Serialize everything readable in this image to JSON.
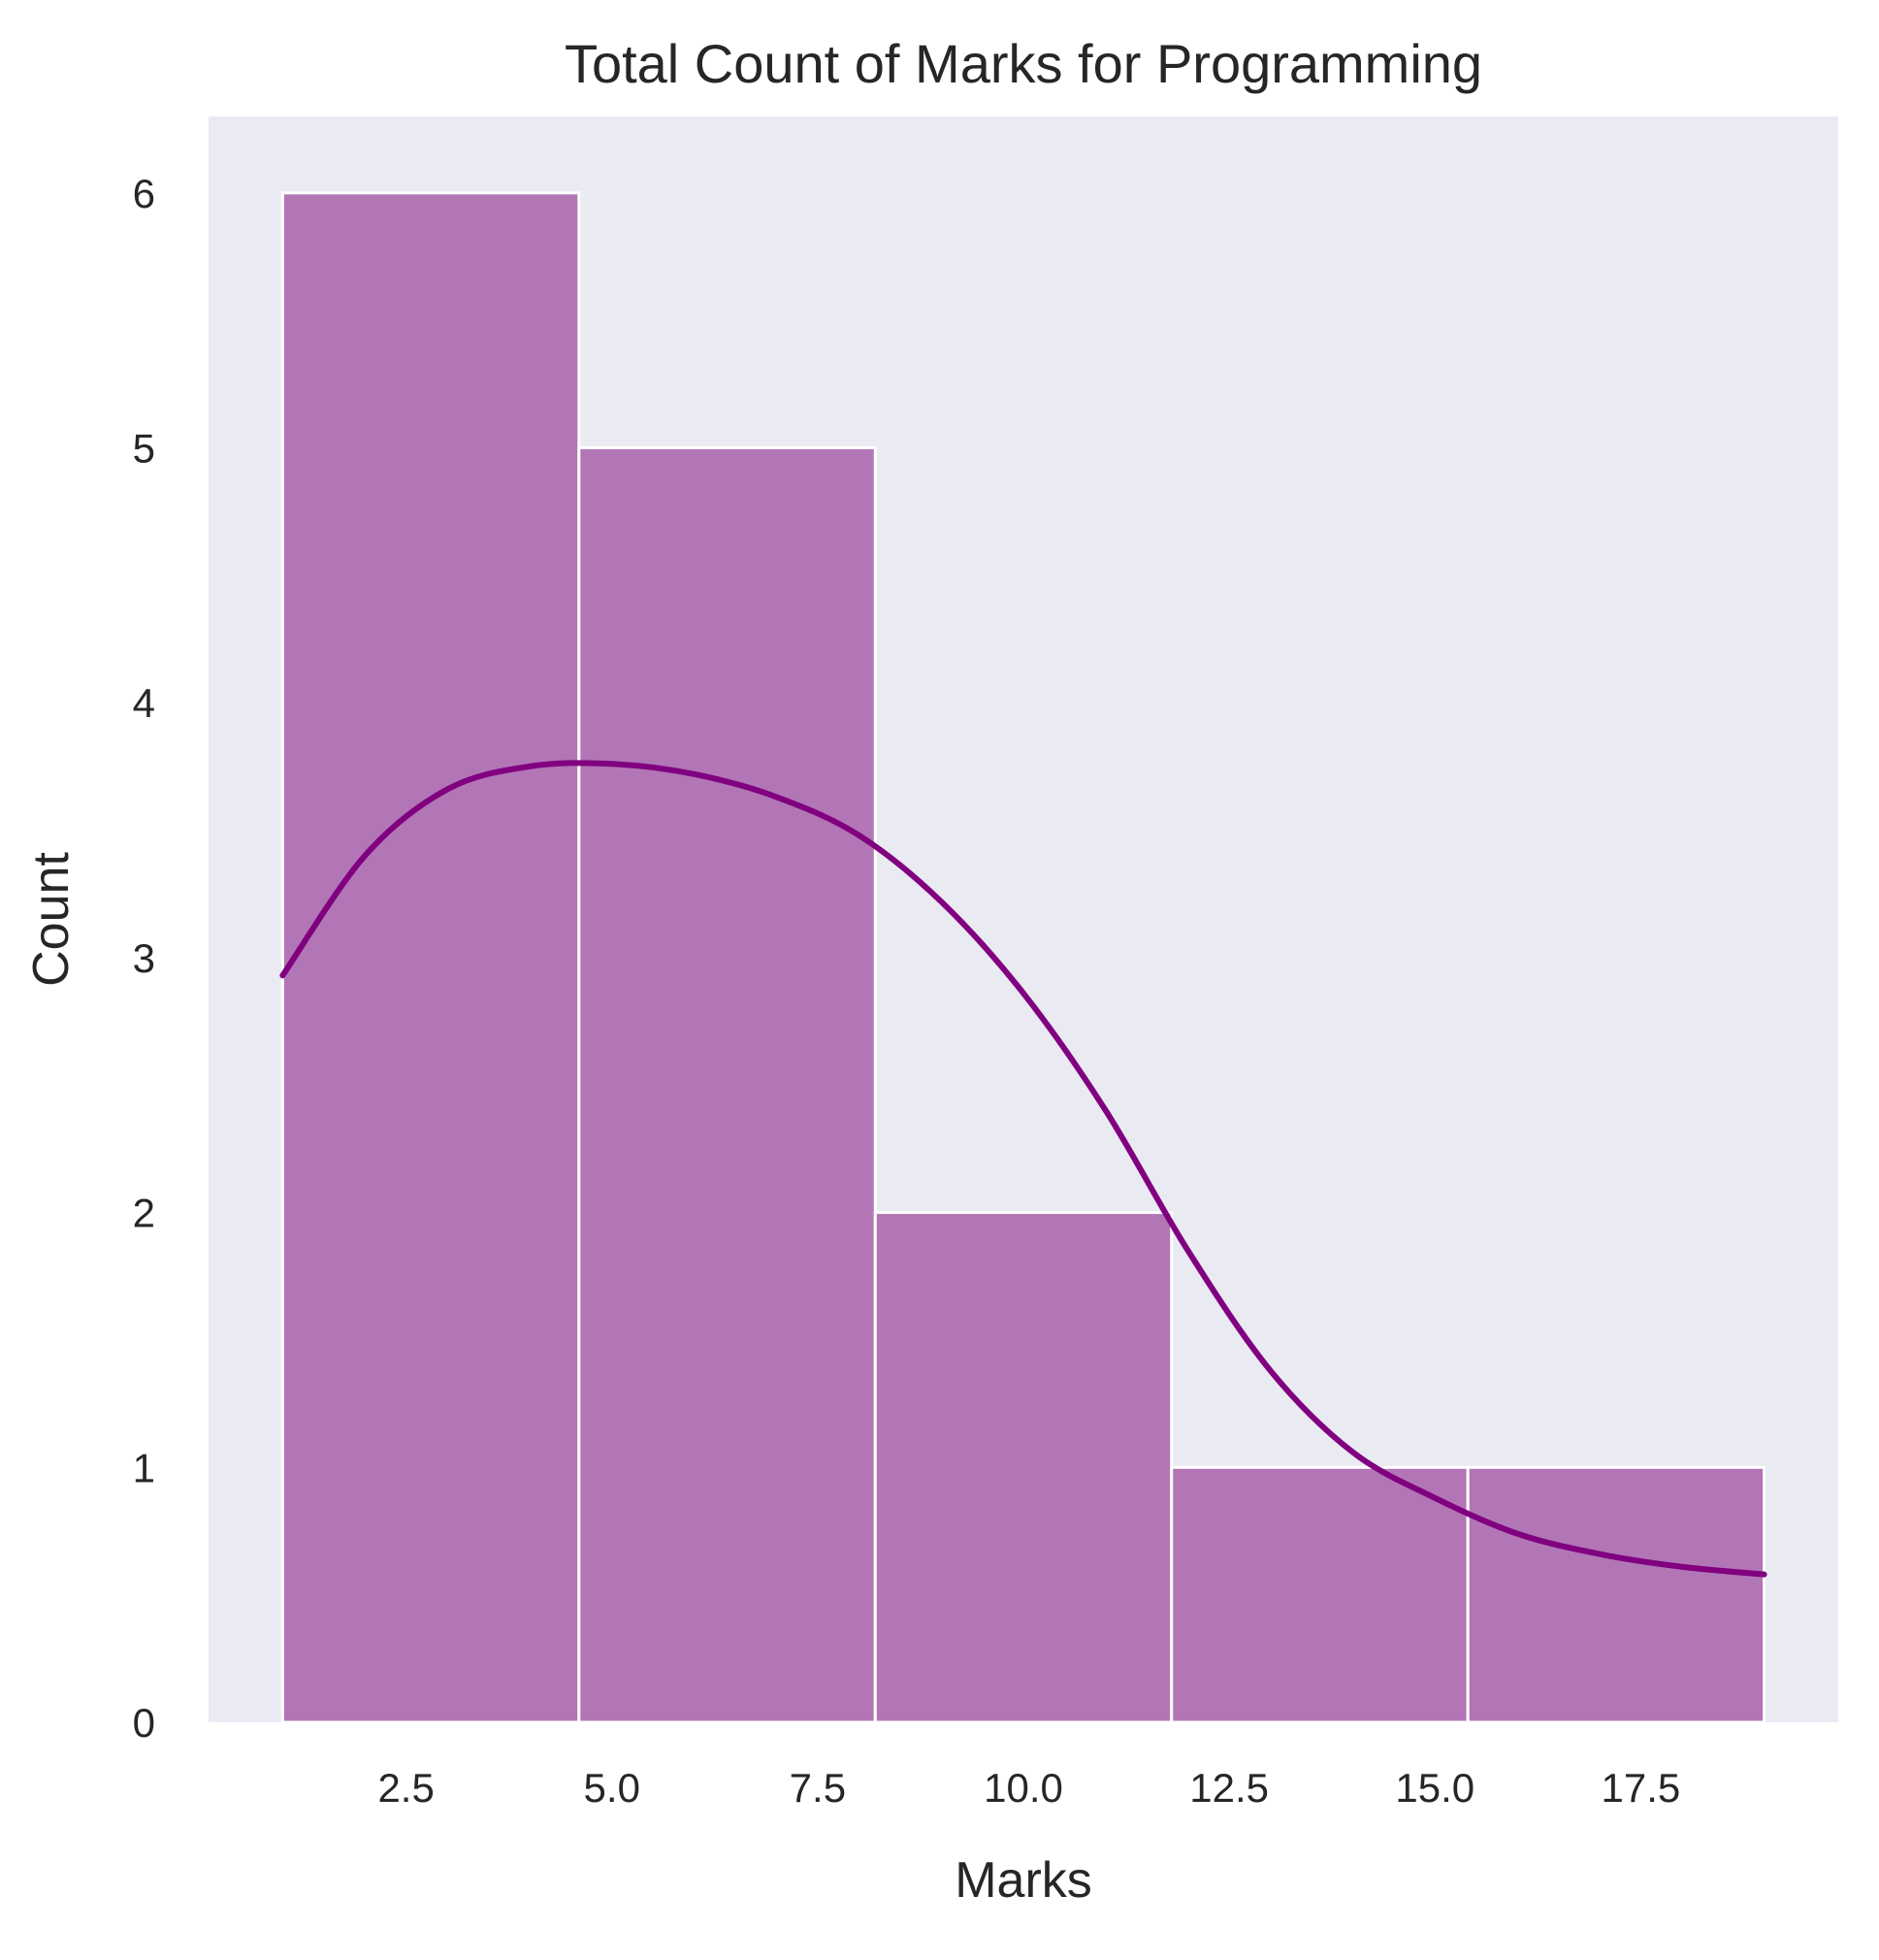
{
  "chart_data": {
    "type": "bar",
    "title": "Total Count of Marks for Programming",
    "xlabel": "Marks",
    "ylabel": "Count",
    "xlim": [
      0.1,
      19.9
    ],
    "ylim": [
      0,
      6.3
    ],
    "xticks": [
      "2.5",
      "5.0",
      "7.5",
      "10.0",
      "12.5",
      "15.0",
      "17.5"
    ],
    "xtick_values": [
      2.5,
      5.0,
      7.5,
      10.0,
      12.5,
      15.0,
      17.5
    ],
    "yticks": [
      "0",
      "1",
      "2",
      "3",
      "4",
      "5",
      "6"
    ],
    "ytick_values": [
      0,
      1,
      2,
      3,
      4,
      5,
      6
    ],
    "bins": [
      {
        "start": 1.0,
        "end": 4.6,
        "count": 6
      },
      {
        "start": 4.6,
        "end": 8.2,
        "count": 5
      },
      {
        "start": 8.2,
        "end": 11.8,
        "count": 2
      },
      {
        "start": 11.8,
        "end": 15.4,
        "count": 1
      },
      {
        "start": 15.4,
        "end": 19.0,
        "count": 1
      }
    ],
    "kde": {
      "x": [
        1.0,
        2.0,
        3.0,
        4.0,
        5.0,
        6.0,
        7.0,
        8.0,
        9.0,
        10.0,
        11.0,
        12.0,
        13.0,
        14.0,
        15.0,
        16.0,
        17.0,
        18.0,
        19.0
      ],
      "y": [
        2.93,
        3.4,
        3.66,
        3.75,
        3.76,
        3.72,
        3.63,
        3.48,
        3.22,
        2.86,
        2.4,
        1.85,
        1.38,
        1.06,
        0.88,
        0.74,
        0.66,
        0.61,
        0.58
      ]
    },
    "grid": false,
    "colors": {
      "background": "#eaeaf2",
      "bar_fill": "#b276b6",
      "bar_edge": "#ffffff",
      "kde_line": "#800080"
    }
  }
}
